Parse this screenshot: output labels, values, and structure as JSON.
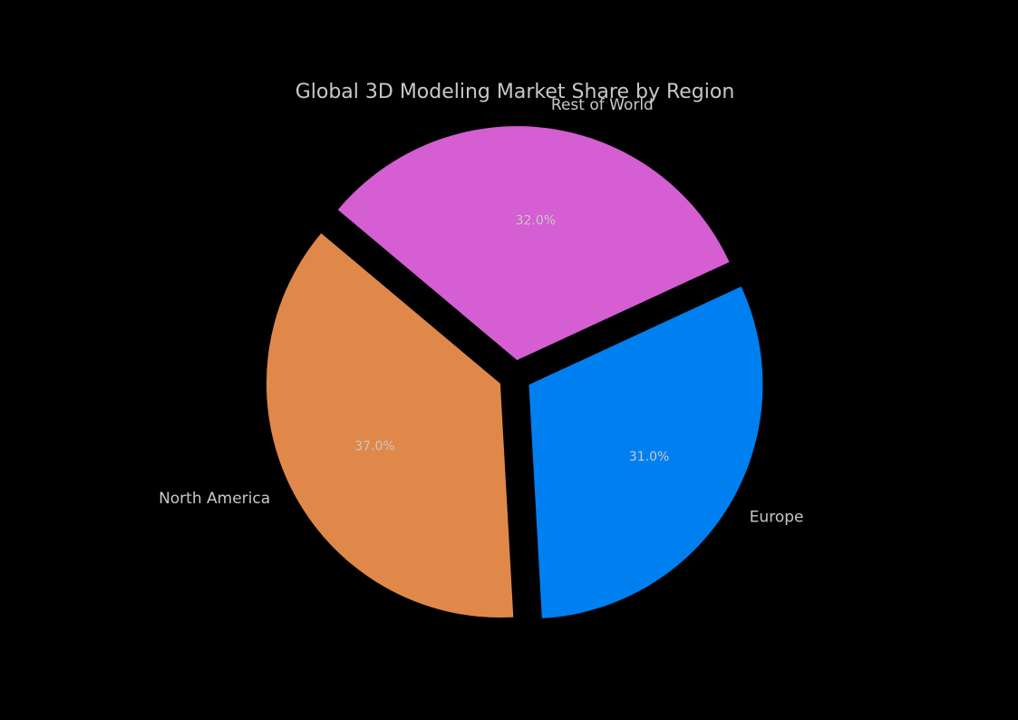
{
  "chart_data": {
    "type": "pie",
    "title": "Global 3D Modeling Market Share by Region",
    "categories": [
      "North America",
      "Europe",
      "Rest of World"
    ],
    "values": [
      37,
      31,
      32
    ],
    "value_labels": [
      "37.0%",
      "31.0%",
      "32.0%"
    ],
    "colors": [
      "#e0884a",
      "#0080f0",
      "#d45ed2"
    ]
  }
}
